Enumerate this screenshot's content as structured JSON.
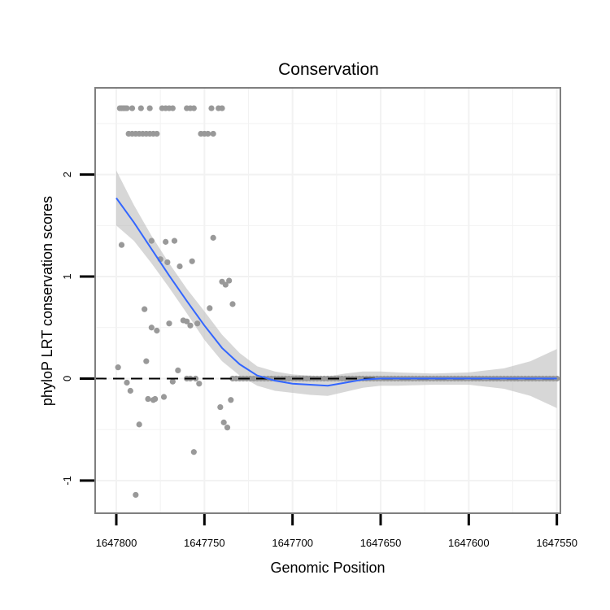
{
  "chart_data": {
    "type": "scatter",
    "title": "Conservation",
    "xlabel": "Genomic Position",
    "ylabel": "phyloP LRT conservation scores",
    "x_reversed": true,
    "xlim": [
      1647548,
      1647812
    ],
    "ylim": [
      -1.32,
      2.85
    ],
    "x_ticks": [
      1647800,
      1647750,
      1647700,
      1647650,
      1647600,
      1647550
    ],
    "y_ticks": [
      -1,
      0,
      1,
      2
    ],
    "reference_line": {
      "y": 0,
      "style": "dashed"
    },
    "grid": true,
    "colors": {
      "points": "#999999",
      "smooth_line": "#3366ff",
      "ribbon": "#bfbfbf",
      "panel_border": "#7f7f7f",
      "grid": "#f2f2f2"
    },
    "points": [
      [
        1647798,
        2.65
      ],
      [
        1647797,
        2.65
      ],
      [
        1647796,
        2.65
      ],
      [
        1647795,
        2.65
      ],
      [
        1647794,
        2.65
      ],
      [
        1647791,
        2.65
      ],
      [
        1647786,
        2.65
      ],
      [
        1647781,
        2.65
      ],
      [
        1647774,
        2.65
      ],
      [
        1647772,
        2.65
      ],
      [
        1647770,
        2.65
      ],
      [
        1647768,
        2.65
      ],
      [
        1647760,
        2.65
      ],
      [
        1647758,
        2.65
      ],
      [
        1647756,
        2.65
      ],
      [
        1647746,
        2.65
      ],
      [
        1647742,
        2.65
      ],
      [
        1647740,
        2.65
      ],
      [
        1647793,
        2.4
      ],
      [
        1647791,
        2.4
      ],
      [
        1647789,
        2.4
      ],
      [
        1647787,
        2.4
      ],
      [
        1647785,
        2.4
      ],
      [
        1647783,
        2.4
      ],
      [
        1647781,
        2.4
      ],
      [
        1647779,
        2.4
      ],
      [
        1647777,
        2.4
      ],
      [
        1647752,
        2.4
      ],
      [
        1647750,
        2.4
      ],
      [
        1647748,
        2.4
      ],
      [
        1647745,
        2.4
      ],
      [
        1647799,
        0.11
      ],
      [
        1647794,
        -0.04
      ],
      [
        1647792,
        -0.12
      ],
      [
        1647789,
        -1.14
      ],
      [
        1647787,
        -0.45
      ],
      [
        1647784,
        0.68
      ],
      [
        1647783,
        0.17
      ],
      [
        1647782,
        -0.2
      ],
      [
        1647780,
        1.35
      ],
      [
        1647780,
        0.5
      ],
      [
        1647779,
        -0.21
      ],
      [
        1647777,
        0.47
      ],
      [
        1647775,
        1.17
      ],
      [
        1647772,
        1.34
      ],
      [
        1647771,
        1.14
      ],
      [
        1647770,
        0.54
      ],
      [
        1647768,
        -0.03
      ],
      [
        1647767,
        1.35
      ],
      [
        1647765,
        0.08
      ],
      [
        1647764,
        1.1
      ],
      [
        1647762,
        0.57
      ],
      [
        1647760,
        0.56
      ],
      [
        1647758,
        0.52
      ],
      [
        1647757,
        1.15
      ],
      [
        1647756,
        -0.72
      ],
      [
        1647755,
        0.0
      ],
      [
        1647754,
        0.54
      ],
      [
        1647753,
        -0.05
      ],
      [
        1647747,
        0.69
      ],
      [
        1647745,
        1.38
      ],
      [
        1647741,
        -0.28
      ],
      [
        1647740,
        0.95
      ],
      [
        1647739,
        -0.43
      ],
      [
        1647738,
        0.92
      ],
      [
        1647737,
        -0.48
      ],
      [
        1647736,
        0.96
      ],
      [
        1647735,
        -0.21
      ],
      [
        1647734,
        0.73
      ],
      [
        1647797,
        1.31
      ],
      [
        1647778,
        -0.2
      ],
      [
        1647773,
        -0.18
      ],
      [
        1647760,
        0.0
      ],
      [
        1647758,
        0.0
      ]
    ],
    "zero_run": {
      "from": 1647734,
      "to": 1647550,
      "step": 2,
      "y": 0
    },
    "smooth": [
      [
        1647800,
        1.77
      ],
      [
        1647790,
        1.53
      ],
      [
        1647780,
        1.27
      ],
      [
        1647770,
        1.01
      ],
      [
        1647760,
        0.76
      ],
      [
        1647750,
        0.52
      ],
      [
        1647740,
        0.3
      ],
      [
        1647730,
        0.14
      ],
      [
        1647720,
        0.03
      ],
      [
        1647710,
        -0.02
      ],
      [
        1647700,
        -0.05
      ],
      [
        1647690,
        -0.06
      ],
      [
        1647680,
        -0.07
      ],
      [
        1647670,
        -0.04
      ],
      [
        1647660,
        -0.01
      ],
      [
        1647650,
        0.0
      ],
      [
        1647640,
        0.0
      ],
      [
        1647620,
        0.0
      ],
      [
        1647600,
        0.0
      ],
      [
        1647580,
        0.0
      ],
      [
        1647550,
        0.0
      ]
    ],
    "ribbon_upper": [
      [
        1647800,
        2.04
      ],
      [
        1647790,
        1.7
      ],
      [
        1647780,
        1.4
      ],
      [
        1647770,
        1.13
      ],
      [
        1647760,
        0.88
      ],
      [
        1647750,
        0.66
      ],
      [
        1647740,
        0.43
      ],
      [
        1647730,
        0.25
      ],
      [
        1647720,
        0.12
      ],
      [
        1647710,
        0.07
      ],
      [
        1647700,
        0.04
      ],
      [
        1647690,
        0.03
      ],
      [
        1647680,
        0.02
      ],
      [
        1647670,
        0.05
      ],
      [
        1647660,
        0.07
      ],
      [
        1647650,
        0.07
      ],
      [
        1647640,
        0.06
      ],
      [
        1647620,
        0.05
      ],
      [
        1647600,
        0.06
      ],
      [
        1647580,
        0.1
      ],
      [
        1647565,
        0.17
      ],
      [
        1647550,
        0.29
      ]
    ],
    "ribbon_lower": [
      [
        1647800,
        1.5
      ],
      [
        1647790,
        1.35
      ],
      [
        1647780,
        1.13
      ],
      [
        1647770,
        0.89
      ],
      [
        1647760,
        0.64
      ],
      [
        1647750,
        0.38
      ],
      [
        1647740,
        0.17
      ],
      [
        1647730,
        0.03
      ],
      [
        1647720,
        -0.07
      ],
      [
        1647710,
        -0.12
      ],
      [
        1647700,
        -0.14
      ],
      [
        1647690,
        -0.16
      ],
      [
        1647680,
        -0.17
      ],
      [
        1647670,
        -0.13
      ],
      [
        1647660,
        -0.09
      ],
      [
        1647650,
        -0.07
      ],
      [
        1647640,
        -0.07
      ],
      [
        1647620,
        -0.06
      ],
      [
        1647600,
        -0.06
      ],
      [
        1647580,
        -0.1
      ],
      [
        1647565,
        -0.17
      ],
      [
        1647550,
        -0.29
      ]
    ]
  }
}
